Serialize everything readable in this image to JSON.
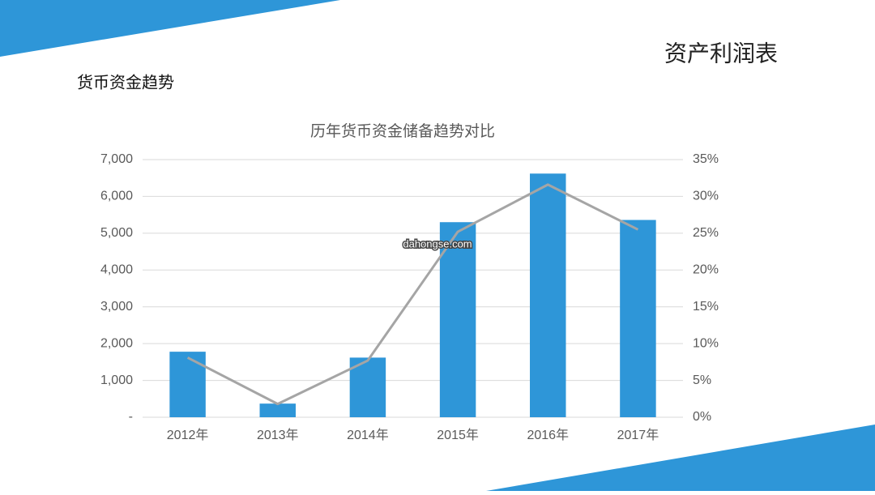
{
  "header": {
    "title": "资产利润表",
    "subtitle": "货币资金趋势"
  },
  "watermark": "dahongse.com",
  "chart_data": {
    "type": "bar",
    "title": "历年货币资金储备趋势对比",
    "categories": [
      "2012年",
      "2013年",
      "2014年",
      "2015年",
      "2016年",
      "2017年"
    ],
    "series": [
      {
        "type": "bar",
        "color": "#2e96d8",
        "values": [
          1780,
          370,
          1620,
          5300,
          6620,
          5360
        ]
      },
      {
        "type": "line",
        "axis": "y2",
        "color": "#a5a5a5",
        "values": [
          8.1,
          1.8,
          7.7,
          25.2,
          31.6,
          25.5
        ]
      }
    ],
    "ylim": [
      0,
      7000
    ],
    "yticks": [
      {
        "value": 0,
        "label": "-"
      },
      {
        "value": 1000,
        "label": "1,000"
      },
      {
        "value": 2000,
        "label": "2,000"
      },
      {
        "value": 3000,
        "label": "3,000"
      },
      {
        "value": 4000,
        "label": "4,000"
      },
      {
        "value": 5000,
        "label": "5,000"
      },
      {
        "value": 6000,
        "label": "6,000"
      },
      {
        "value": 7000,
        "label": "7,000"
      }
    ],
    "y2lim": [
      0,
      35
    ],
    "y2ticks": [
      {
        "value": 0,
        "label": "0%"
      },
      {
        "value": 5,
        "label": "5%"
      },
      {
        "value": 10,
        "label": "10%"
      },
      {
        "value": 15,
        "label": "15%"
      },
      {
        "value": 20,
        "label": "20%"
      },
      {
        "value": 25,
        "label": "25%"
      },
      {
        "value": 30,
        "label": "30%"
      },
      {
        "value": 35,
        "label": "35%"
      }
    ],
    "grid": true
  }
}
